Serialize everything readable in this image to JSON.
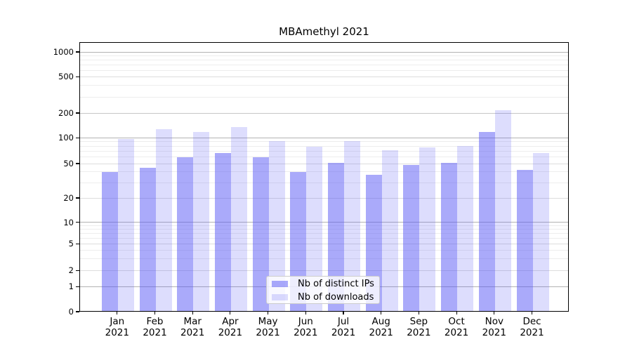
{
  "figure": {
    "title": "MBAmethyl 2021"
  },
  "chart_data": {
    "type": "bar",
    "title": "MBAmethyl 2021",
    "categories": [
      "Jan 2021",
      "Feb 2021",
      "Mar 2021",
      "Apr 2021",
      "May 2021",
      "Jun 2021",
      "Jul 2021",
      "Aug 2021",
      "Sep 2021",
      "Oct 2021",
      "Nov 2021",
      "Dec 2021"
    ],
    "series": [
      {
        "name": "Nb of distinct IPs",
        "color": "rgba(85,85,245,0.5)",
        "values": [
          40,
          45,
          59,
          67,
          59,
          40,
          51,
          37,
          48,
          51,
          117,
          42
        ]
      },
      {
        "name": "Nb of downloads",
        "color": "rgba(85,85,245,0.2)",
        "values": [
          96,
          127,
          117,
          135,
          92,
          78,
          92,
          71,
          77,
          80,
          215,
          66
        ]
      }
    ],
    "xlabel": "",
    "ylabel": "",
    "yscale": "symlog",
    "yticks": [
      0,
      1,
      2,
      5,
      10,
      20,
      50,
      100,
      200,
      500,
      1000
    ],
    "ylim": [
      0,
      1150
    ],
    "grid": "both",
    "legend_position": "lower center"
  }
}
